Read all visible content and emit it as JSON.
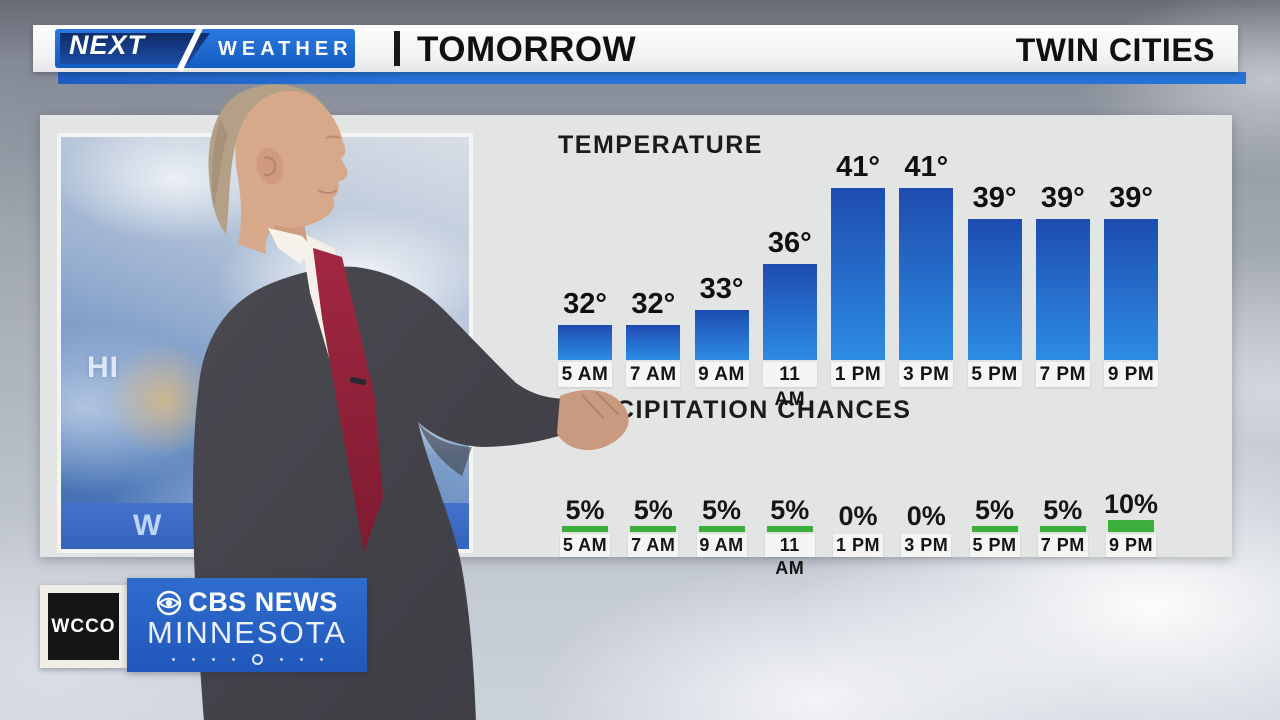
{
  "banner": {
    "logo": {
      "next": "NEXT",
      "weather": "WEATHER"
    },
    "divider": "|",
    "segment_label": "TOMORROW",
    "location_label": "TWIN CITIES"
  },
  "graphic_panel": {
    "cloud_inset": {
      "partial_text_high": "HI",
      "partial_text_band": "W"
    }
  },
  "chart_data": [
    {
      "type": "bar",
      "title": "TEMPERATURE",
      "categories": [
        "5 AM",
        "7 AM",
        "9 AM",
        "11 AM",
        "1 PM",
        "3 PM",
        "5 PM",
        "7 PM",
        "9 PM"
      ],
      "values": [
        32,
        32,
        33,
        36,
        41,
        41,
        39,
        39,
        39
      ],
      "unit": "°",
      "ylim": [
        30,
        45
      ],
      "grid": false,
      "legend": "none",
      "bar_color_top": "#1e4cb0",
      "bar_color_bottom": "#2d8ce2"
    },
    {
      "type": "bar",
      "title": "PRECIPITATION CHANCES",
      "categories": [
        "5 AM",
        "7 AM",
        "9 AM",
        "11 AM",
        "1 PM",
        "3 PM",
        "5 PM",
        "7 PM",
        "9 PM"
      ],
      "values": [
        5,
        5,
        5,
        5,
        0,
        0,
        5,
        5,
        10
      ],
      "unit": "%",
      "ylim": [
        0,
        100
      ],
      "grid": false,
      "legend": "none",
      "bar_color": "#3cae3b"
    }
  ],
  "station_logo": {
    "callsign": "WCCO",
    "network": "CBS NEWS",
    "region": "MINNESOTA",
    "eye_icon": "cbs-eye-icon",
    "brand_blue": "#2763c9"
  },
  "colors": {
    "banner_accent_blue": "#2673d6",
    "next_logo_navy": "#14367e",
    "panel_gray": "#e3e5e4",
    "time_box_white": "#f5f5f3"
  }
}
